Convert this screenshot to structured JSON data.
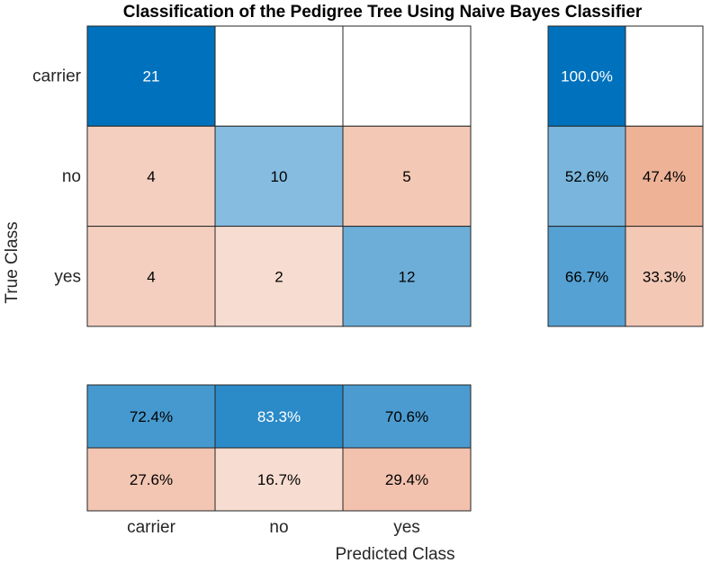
{
  "chart_data": {
    "type": "heatmap",
    "title": "Classification of the Pedigree Tree Using Naive Bayes Classifier",
    "xlabel": "Predicted Class",
    "ylabel": "True Class",
    "classes": [
      "carrier",
      "no",
      "yes"
    ],
    "confusion_matrix": [
      [
        21,
        null,
        null
      ],
      [
        4,
        10,
        5
      ],
      [
        4,
        2,
        12
      ]
    ],
    "row_summary": [
      [
        "100.0%",
        null
      ],
      [
        "52.6%",
        "47.4%"
      ],
      [
        "66.7%",
        "33.3%"
      ]
    ],
    "column_summary": [
      [
        "72.4%",
        "83.3%",
        "70.6%"
      ],
      [
        "27.6%",
        "16.7%",
        "29.4%"
      ]
    ],
    "colors": {
      "correct_scale": "#0072bd",
      "incorrect_scale": "#d95319",
      "grid": "#262626"
    }
  }
}
